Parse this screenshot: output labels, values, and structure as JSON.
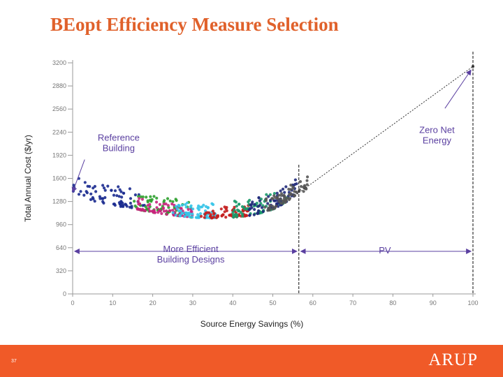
{
  "slide": {
    "title": "BEopt Efficiency Measure Selection",
    "slide_number": "37",
    "logo_text": "ARUP",
    "accent_color": "#f05a28",
    "title_color": "#e0612b"
  },
  "chart_data": {
    "type": "scatter",
    "title": "",
    "xlabel": "Source Energy Savings (%)",
    "ylabel": "Total Annual Cost ($/yr)",
    "xlim": [
      0,
      100
    ],
    "ylim": [
      0,
      3200
    ],
    "xticks": [
      "0",
      "10",
      "20",
      "30",
      "40",
      "50",
      "60",
      "70",
      "80",
      "90",
      "100"
    ],
    "yticks": [
      "0",
      "320",
      "640",
      "960",
      "1280",
      "1600",
      "1920",
      "2240",
      "2560",
      "2880",
      "3200"
    ],
    "grid": false,
    "curve": [
      [
        0,
        1390
      ],
      [
        5,
        1290
      ],
      [
        10,
        1230
      ],
      [
        15,
        1180
      ],
      [
        20,
        1130
      ],
      [
        25,
        1090
      ],
      [
        30,
        1060
      ],
      [
        35,
        1050
      ],
      [
        40,
        1060
      ],
      [
        45,
        1090
      ],
      [
        50,
        1170
      ],
      [
        53,
        1260
      ],
      [
        56,
        1380
      ],
      [
        60,
        1470
      ],
      [
        100,
        3150
      ]
    ],
    "pv_line": [
      [
        56,
        1380
      ],
      [
        100,
        3150
      ]
    ],
    "vlines": [
      56.5,
      100
    ],
    "zero_net_point": [
      100,
      3150
    ],
    "clusters": [
      {
        "color": "#1a2a8f",
        "x": [
          0,
          18
        ],
        "offset": [
          0,
          270
        ]
      },
      {
        "color": "#2ea02e",
        "x": [
          15,
          30
        ],
        "offset": [
          0,
          230
        ]
      },
      {
        "color": "#c8247c",
        "x": [
          16,
          30
        ],
        "offset": [
          0,
          160
        ]
      },
      {
        "color": "#35c4e8",
        "x": [
          25,
          36
        ],
        "offset": [
          0,
          200
        ]
      },
      {
        "color": "#c41e1e",
        "x": [
          32,
          44
        ],
        "offset": [
          0,
          150
        ]
      },
      {
        "color": "#1a9a6a",
        "x": [
          40,
          54
        ],
        "offset": [
          0,
          260
        ]
      },
      {
        "color": "#202a7a",
        "x": [
          44,
          56
        ],
        "offset": [
          0,
          230
        ]
      },
      {
        "color": "#555555",
        "x": [
          48,
          59
        ],
        "offset": [
          0,
          200
        ]
      }
    ],
    "annotations": [
      {
        "text": "Reference Building",
        "lines": [
          "Reference",
          "Building"
        ],
        "anchor": [
          11.5,
          2120
        ],
        "arrow_from": [
          3,
          1860
        ],
        "arrow_to": [
          0,
          1410
        ]
      },
      {
        "text": "Zero Net Energy",
        "lines": [
          "Zero Net",
          "Energy"
        ],
        "anchor": [
          91,
          2230
        ],
        "arrow_from": [
          93,
          2570
        ],
        "arrow_to": [
          99.5,
          3100
        ]
      },
      {
        "text": "More Efficient Building Designs",
        "lines": [
          "More Efficient",
          "Building Designs"
        ],
        "anchor": [
          29.5,
          580
        ],
        "arrow_from": [
          0.5,
          590
        ],
        "arrow_to": [
          56,
          590
        ]
      },
      {
        "text": "PV",
        "lines": [
          "PV"
        ],
        "anchor": [
          78,
          560
        ],
        "arrow_from": [
          57,
          590
        ],
        "arrow_to": [
          99.5,
          590
        ]
      }
    ],
    "annotation_color": "#5a3fa0"
  }
}
